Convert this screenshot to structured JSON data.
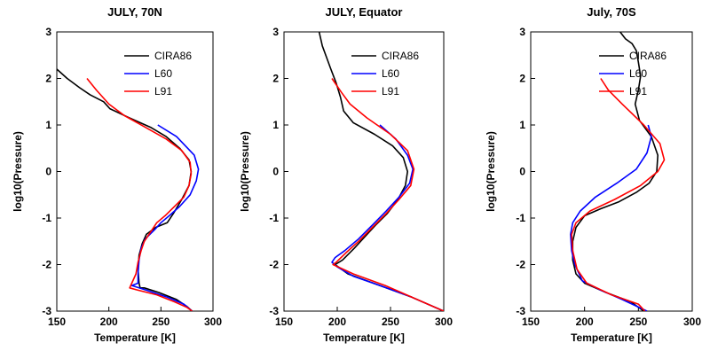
{
  "chart_data": [
    {
      "type": "line",
      "title": "JULY, 70N",
      "xlabel": "Temperature [K]",
      "ylabel": "log10(Pressure)",
      "xlim": [
        150,
        300
      ],
      "ylim": [
        -3,
        3
      ],
      "xticks": [
        150,
        200,
        250,
        300
      ],
      "yticks": [
        -3,
        -2,
        -1,
        0,
        1,
        2,
        3
      ],
      "legend_position": "top-right",
      "series": [
        {
          "name": "CIRA86",
          "color": "#000000",
          "x": [
            150,
            160,
            172,
            182,
            195,
            201,
            220,
            240,
            255,
            268,
            277,
            279,
            277,
            270,
            262,
            256,
            245,
            236,
            232,
            229,
            228,
            229,
            230,
            234,
            248,
            265,
            275,
            280
          ],
          "y": [
            2.2,
            2.0,
            1.8,
            1.65,
            1.5,
            1.35,
            1.15,
            0.95,
            0.75,
            0.5,
            0.25,
            0.0,
            -0.3,
            -0.6,
            -0.9,
            -1.1,
            -1.2,
            -1.35,
            -1.55,
            -1.8,
            -2.1,
            -2.4,
            -2.5,
            -2.5,
            -2.6,
            -2.75,
            -2.9,
            -3.0
          ]
        },
        {
          "name": "L60",
          "color": "#0000ff",
          "x": [
            247,
            265,
            282,
            286,
            284,
            278,
            268,
            258,
            250,
            244,
            235,
            231,
            229,
            228,
            228,
            222,
            236,
            256,
            272,
            280
          ],
          "y": [
            1.0,
            0.75,
            0.35,
            0.05,
            -0.2,
            -0.5,
            -0.75,
            -0.95,
            -1.1,
            -1.25,
            -1.45,
            -1.65,
            -1.9,
            -2.2,
            -2.4,
            -2.45,
            -2.55,
            -2.7,
            -2.85,
            -3.0
          ]
        },
        {
          "name": "L91",
          "color": "#ff0000",
          "x": [
            179,
            188,
            200,
            215,
            235,
            255,
            270,
            278,
            279,
            277,
            272,
            263,
            254,
            246,
            240,
            234,
            231,
            228,
            226,
            222,
            220,
            228,
            246,
            263,
            275,
            280
          ],
          "y": [
            2.0,
            1.75,
            1.45,
            1.2,
            0.95,
            0.7,
            0.45,
            0.2,
            -0.05,
            -0.3,
            -0.55,
            -0.75,
            -0.95,
            -1.1,
            -1.3,
            -1.5,
            -1.7,
            -1.95,
            -2.2,
            -2.4,
            -2.5,
            -2.55,
            -2.65,
            -2.8,
            -2.92,
            -3.0
          ]
        }
      ]
    },
    {
      "type": "line",
      "title": "JULY, Equator",
      "xlabel": "Temperature [K]",
      "ylabel": "log10(Pressure)",
      "xlim": [
        150,
        300
      ],
      "ylim": [
        -3,
        3
      ],
      "xticks": [
        150,
        200,
        250,
        300
      ],
      "yticks": [
        -3,
        -2,
        -1,
        0,
        1,
        2,
        3
      ],
      "legend_position": "top-right",
      "series": [
        {
          "name": "CIRA86",
          "color": "#000000",
          "x": [
            183,
            186,
            190,
            194,
            199,
            203,
            206,
            215,
            235,
            252,
            262,
            266,
            264,
            257,
            247,
            236,
            226,
            216,
            205,
            198,
            210,
            240,
            270,
            300
          ],
          "y": [
            3.0,
            2.7,
            2.45,
            2.2,
            1.9,
            1.6,
            1.3,
            1.05,
            0.8,
            0.55,
            0.3,
            0.0,
            -0.3,
            -0.6,
            -0.9,
            -1.15,
            -1.4,
            -1.65,
            -1.9,
            -2.0,
            -2.2,
            -2.45,
            -2.7,
            -3.0
          ]
        },
        {
          "name": "L60",
          "color": "#0000ff",
          "x": [
            240,
            255,
            266,
            271,
            268,
            258,
            246,
            233,
            220,
            207,
            198,
            195,
            200,
            215,
            240,
            270,
            300
          ],
          "y": [
            1.0,
            0.7,
            0.35,
            0.05,
            -0.25,
            -0.55,
            -0.85,
            -1.15,
            -1.45,
            -1.7,
            -1.85,
            -1.95,
            -2.05,
            -2.25,
            -2.45,
            -2.7,
            -3.0
          ]
        },
        {
          "name": "L91",
          "color": "#ff0000",
          "x": [
            195,
            204,
            212,
            228,
            250,
            266,
            272,
            269,
            258,
            246,
            233,
            220,
            208,
            199,
            196,
            215,
            245,
            275,
            300
          ],
          "y": [
            2.0,
            1.7,
            1.45,
            1.15,
            0.8,
            0.45,
            0.05,
            -0.3,
            -0.6,
            -0.9,
            -1.2,
            -1.5,
            -1.75,
            -1.95,
            -2.0,
            -2.2,
            -2.45,
            -2.75,
            -3.0
          ]
        }
      ]
    },
    {
      "type": "line",
      "title": "July, 70S",
      "xlabel": "Temperature [K]",
      "ylabel": "log10(Pressure)",
      "xlim": [
        150,
        300
      ],
      "ylim": [
        -3,
        3
      ],
      "xticks": [
        150,
        200,
        250,
        300
      ],
      "yticks": [
        -3,
        -2,
        -1,
        0,
        1,
        2,
        3
      ],
      "legend_position": "top-right",
      "series": [
        {
          "name": "CIRA86",
          "color": "#000000",
          "x": [
            233,
            238,
            244,
            248,
            250,
            252,
            250,
            247,
            251,
            262,
            268,
            267,
            260,
            248,
            232,
            215,
            200,
            192,
            189,
            189,
            192,
            200,
            220,
            243,
            255
          ],
          "y": [
            3.0,
            2.85,
            2.75,
            2.6,
            2.35,
            2.05,
            1.75,
            1.45,
            1.1,
            0.75,
            0.35,
            0.0,
            -0.25,
            -0.45,
            -0.65,
            -0.8,
            -0.95,
            -1.2,
            -1.5,
            -1.9,
            -2.2,
            -2.4,
            -2.6,
            -2.8,
            -3.0
          ]
        },
        {
          "name": "L60",
          "color": "#0000ff",
          "x": [
            259,
            262,
            258,
            248,
            230,
            210,
            196,
            189,
            187,
            188,
            191,
            198,
            215,
            235,
            258
          ],
          "y": [
            1.0,
            0.75,
            0.4,
            0.05,
            -0.25,
            -0.55,
            -0.85,
            -1.1,
            -1.35,
            -1.7,
            -2.0,
            -2.35,
            -2.55,
            -2.75,
            -3.0
          ]
        },
        {
          "name": "L91",
          "color": "#ff0000",
          "x": [
            215,
            222,
            235,
            255,
            270,
            274,
            268,
            252,
            228,
            205,
            192,
            188,
            189,
            193,
            202,
            225,
            250,
            256
          ],
          "y": [
            2.0,
            1.75,
            1.45,
            1.0,
            0.6,
            0.25,
            0.0,
            -0.3,
            -0.6,
            -0.85,
            -1.1,
            -1.35,
            -1.7,
            -2.1,
            -2.4,
            -2.65,
            -2.85,
            -3.0
          ]
        }
      ]
    }
  ]
}
